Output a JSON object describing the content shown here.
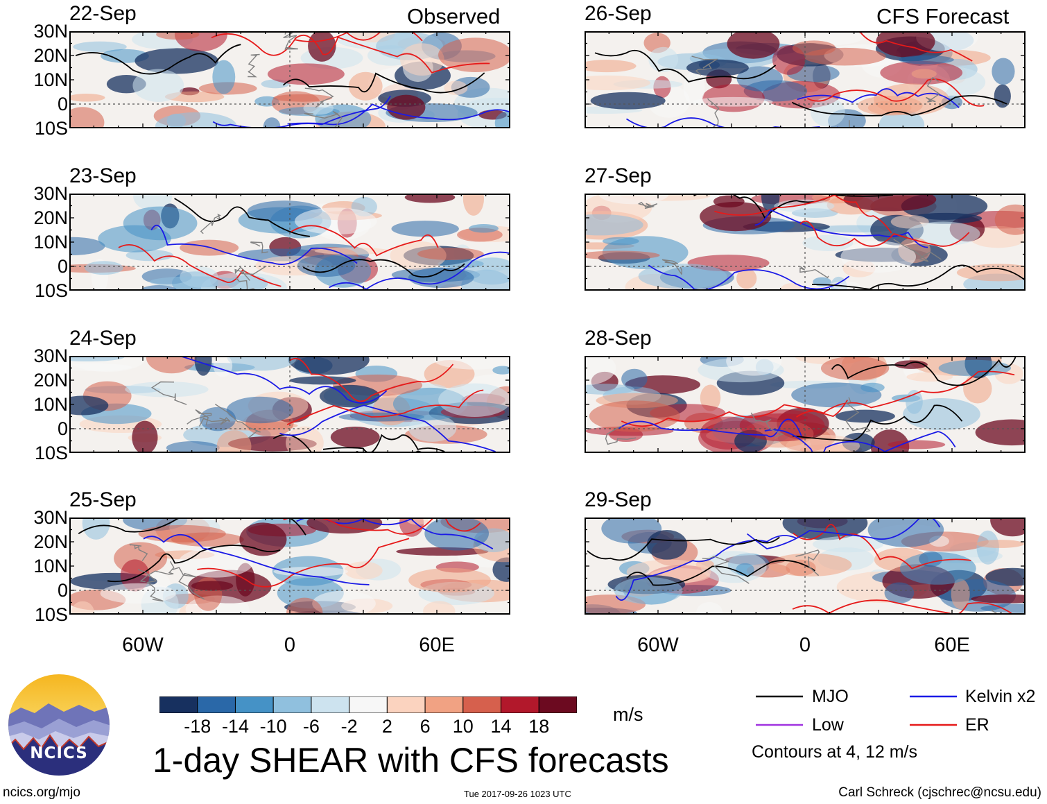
{
  "chart_data": {
    "type": "heatmap",
    "title": "1-day SHEAR with CFS forecasts",
    "panel_groups": [
      {
        "label": "Observed",
        "dates": [
          "22-Sep",
          "23-Sep",
          "24-Sep",
          "25-Sep"
        ]
      },
      {
        "label": "CFS Forecast",
        "dates": [
          "26-Sep",
          "27-Sep",
          "28-Sep",
          "29-Sep"
        ]
      }
    ],
    "latitude_ticks": [
      "30N",
      "20N",
      "10N",
      "0",
      "10S"
    ],
    "latitude_range": [
      -10,
      30
    ],
    "longitude_ticks": [
      "60W",
      "0",
      "60E"
    ],
    "longitude_range": [
      -90,
      90
    ],
    "colorbar": {
      "unit": "m/s",
      "tick_labels": [
        "-18",
        "-14",
        "-10",
        "-6",
        "-2",
        "2",
        "6",
        "10",
        "14",
        "18"
      ],
      "colors": [
        "#17305f",
        "#2a68a8",
        "#4592c6",
        "#90c0de",
        "#cde3ef",
        "#f7f7f7",
        "#fbd3bf",
        "#f1a283",
        "#d6604d",
        "#b2182b",
        "#6c0a20"
      ]
    },
    "contour_legend": [
      {
        "name": "MJO",
        "color": "#000000"
      },
      {
        "name": "Kelvin x2",
        "color": "#1a1ae6"
      },
      {
        "name": "Low",
        "color": "#a033e0"
      },
      {
        "name": "ER",
        "color": "#e61a1a"
      }
    ],
    "contour_note": "Contours at 4, 12 m/s"
  },
  "footer": {
    "logo_text": "NCICS",
    "url": "ncics.org/mjo",
    "timestamp": "Tue 2017-09-26 1023 UTC",
    "credit": "Carl Schreck (cjschrec@ncsu.edu)"
  }
}
